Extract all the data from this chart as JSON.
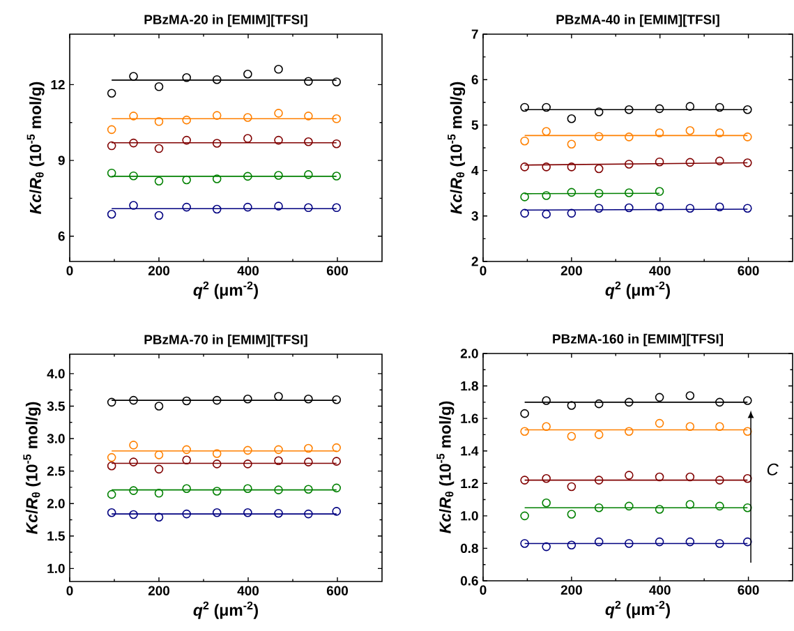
{
  "chart_data": [
    {
      "type": "scatter",
      "title": "PBzMA-20 in [EMIM][TFSI]",
      "xlabel": "*q*$^{2}$ (μm$^{-2}$)",
      "ylabel": "*Kc*/*R*$_{θ}$ (10$^{-5}$ mol/g)",
      "marker": "circle",
      "x": [
        94,
        143,
        200,
        262,
        330,
        399,
        468,
        535,
        598
      ],
      "xlim": [
        0,
        700
      ],
      "xticks": [
        0,
        200,
        400,
        600
      ],
      "ylim": [
        5,
        14
      ],
      "yticks": [
        6,
        9,
        12
      ],
      "series": [
        {
          "color": "#000000",
          "values": [
            11.66,
            12.33,
            11.92,
            12.28,
            12.2,
            12.42,
            12.61,
            12.13,
            12.11
          ]
        },
        {
          "color": "#ff8000",
          "values": [
            10.22,
            10.76,
            10.54,
            10.6,
            10.78,
            10.7,
            10.87,
            10.76,
            10.65
          ]
        },
        {
          "color": "#800000",
          "values": [
            9.58,
            9.69,
            9.47,
            9.8,
            9.68,
            9.87,
            9.8,
            9.74,
            9.66
          ]
        },
        {
          "color": "#008000",
          "values": [
            8.5,
            8.39,
            8.18,
            8.23,
            8.27,
            8.37,
            8.41,
            8.44,
            8.38
          ]
        },
        {
          "color": "#000080",
          "values": [
            6.87,
            7.22,
            6.82,
            7.15,
            7.07,
            7.15,
            7.19,
            7.13,
            7.13
          ]
        },
        {
          "type": "line",
          "marker": "none",
          "color": "#000000",
          "x": [
            94,
            598
          ],
          "values": [
            12.18,
            12.18
          ]
        },
        {
          "type": "line",
          "marker": "none",
          "color": "#ff8000",
          "x": [
            94,
            598
          ],
          "values": [
            10.65,
            10.65
          ]
        },
        {
          "type": "line",
          "marker": "none",
          "color": "#800000",
          "x": [
            94,
            598
          ],
          "values": [
            9.7,
            9.7
          ]
        },
        {
          "type": "line",
          "marker": "none",
          "color": "#008000",
          "x": [
            94,
            598
          ],
          "values": [
            8.37,
            8.37
          ]
        },
        {
          "type": "line",
          "marker": "none",
          "color": "#000080",
          "x": [
            94,
            598
          ],
          "values": [
            7.09,
            7.09
          ]
        }
      ]
    },
    {
      "type": "scatter",
      "title": "PBzMA-40 in [EMIM][TFSI]",
      "xlabel": "*q*$^{2}$ (μm$^{-2}$)",
      "ylabel": "*Kc*/*R*$_{θ}$ (10$^{-5}$ mol/g)",
      "marker": "circle",
      "x": [
        94,
        143,
        200,
        262,
        330,
        399,
        468,
        535,
        598
      ],
      "xlim": [
        0,
        700
      ],
      "xticks": [
        0,
        200,
        400,
        600
      ],
      "ylim": [
        2,
        7
      ],
      "yticks": [
        2,
        3,
        4,
        5,
        6,
        7
      ],
      "series": [
        {
          "color": "#000000",
          "values": [
            5.39,
            5.39,
            5.14,
            5.29,
            5.34,
            5.36,
            5.41,
            5.39,
            5.34
          ]
        },
        {
          "color": "#ff8000",
          "values": [
            4.65,
            4.86,
            4.58,
            4.75,
            4.74,
            4.83,
            4.88,
            4.83,
            4.74
          ]
        },
        {
          "color": "#800000",
          "values": [
            4.08,
            4.08,
            4.08,
            4.04,
            4.14,
            4.19,
            4.18,
            4.21,
            4.17
          ]
        },
        {
          "color": "#008000",
          "x": [
            94,
            143,
            200,
            262,
            330,
            399
          ],
          "values": [
            3.42,
            3.45,
            3.52,
            3.5,
            3.51,
            3.54
          ]
        },
        {
          "color": "#000080",
          "values": [
            3.06,
            3.04,
            3.06,
            3.17,
            3.18,
            3.2,
            3.17,
            3.2,
            3.17
          ]
        },
        {
          "type": "line",
          "marker": "none",
          "color": "#000000",
          "x": [
            94,
            598
          ],
          "values": [
            5.34,
            5.34
          ]
        },
        {
          "type": "line",
          "marker": "none",
          "color": "#ff8000",
          "x": [
            94,
            598
          ],
          "values": [
            4.77,
            4.77
          ]
        },
        {
          "type": "line",
          "marker": "none",
          "color": "#800000",
          "x": [
            94,
            598
          ],
          "values": [
            4.12,
            4.17
          ]
        },
        {
          "type": "line",
          "marker": "none",
          "color": "#008000",
          "x": [
            94,
            399
          ],
          "values": [
            3.49,
            3.5
          ]
        },
        {
          "type": "line",
          "marker": "none",
          "color": "#000080",
          "x": [
            94,
            598
          ],
          "values": [
            3.13,
            3.15
          ]
        }
      ]
    },
    {
      "type": "scatter",
      "title": "PBzMA-70 in [EMIM][TFSI]",
      "xlabel": "*q*$^{2}$ (μm$^{-2}$)",
      "ylabel": "*Kc*/*R*$_{θ}$ (10$^{-5}$ mol/g)",
      "marker": "circle",
      "x": [
        94,
        143,
        200,
        262,
        330,
        399,
        468,
        535,
        598
      ],
      "xlim": [
        0,
        700
      ],
      "xticks": [
        0,
        200,
        400,
        600
      ],
      "ylim": [
        0.8,
        4.3
      ],
      "yticks": [
        {
          "value": 1,
          "label": "1.0"
        },
        {
          "value": 1.5,
          "label": "1.5"
        },
        {
          "value": 2,
          "label": "2.0"
        },
        {
          "value": 2.5,
          "label": "2.5"
        },
        {
          "value": 3,
          "label": "3.0"
        },
        {
          "value": 3.5,
          "label": "3.5"
        },
        {
          "value": 4,
          "label": "4.0"
        }
      ],
      "series": [
        {
          "color": "#000000",
          "values": [
            3.56,
            3.59,
            3.5,
            3.58,
            3.59,
            3.61,
            3.65,
            3.61,
            3.6
          ]
        },
        {
          "color": "#ff8000",
          "values": [
            2.71,
            2.9,
            2.75,
            2.83,
            2.77,
            2.82,
            2.83,
            2.85,
            2.86
          ]
        },
        {
          "color": "#800000",
          "values": [
            2.58,
            2.64,
            2.53,
            2.67,
            2.61,
            2.61,
            2.66,
            2.64,
            2.65
          ]
        },
        {
          "color": "#008000",
          "values": [
            2.14,
            2.2,
            2.16,
            2.23,
            2.19,
            2.23,
            2.21,
            2.22,
            2.24
          ]
        },
        {
          "color": "#000080",
          "values": [
            1.86,
            1.83,
            1.79,
            1.84,
            1.86,
            1.86,
            1.85,
            1.84,
            1.88
          ]
        },
        {
          "type": "line",
          "marker": "none",
          "color": "#000000",
          "x": [
            94,
            598
          ],
          "values": [
            3.59,
            3.59
          ]
        },
        {
          "type": "line",
          "marker": "none",
          "color": "#ff8000",
          "x": [
            94,
            598
          ],
          "values": [
            2.81,
            2.81
          ]
        },
        {
          "type": "line",
          "marker": "none",
          "color": "#800000",
          "x": [
            94,
            598
          ],
          "values": [
            2.62,
            2.62
          ]
        },
        {
          "type": "line",
          "marker": "none",
          "color": "#008000",
          "x": [
            94,
            598
          ],
          "values": [
            2.21,
            2.21
          ]
        },
        {
          "type": "line",
          "marker": "none",
          "color": "#000080",
          "x": [
            94,
            598
          ],
          "values": [
            1.84,
            1.84
          ]
        }
      ]
    },
    {
      "type": "scatter",
      "title": "PBzMA-160 in [EMIM][TFSI]",
      "xlabel": "*q*$^{2}$ (μm$^{-2}$)",
      "ylabel": "*Kc*/*R*$_{θ}$ (10$^{-5}$ mol/g)",
      "marker": "circle",
      "x": [
        94,
        143,
        200,
        262,
        330,
        399,
        468,
        535,
        598
      ],
      "xlim": [
        0,
        700
      ],
      "xticks": [
        0,
        200,
        400,
        600
      ],
      "ylim": [
        0.6,
        2.0
      ],
      "yticks": [
        0.6,
        0.8,
        {
          "value": 1,
          "label": "1.0"
        },
        1.2,
        1.4,
        1.6,
        1.8,
        {
          "value": 2,
          "label": "2.0"
        }
      ],
      "annotations": [
        "C"
      ],
      "series": [
        {
          "color": "#000000",
          "values": [
            1.63,
            1.71,
            1.68,
            1.69,
            1.7,
            1.73,
            1.74,
            1.7,
            1.71
          ]
        },
        {
          "color": "#ff8000",
          "values": [
            1.52,
            1.55,
            1.49,
            1.5,
            1.52,
            1.57,
            1.55,
            1.55,
            1.52
          ]
        },
        {
          "color": "#800000",
          "values": [
            1.22,
            1.23,
            1.18,
            1.22,
            1.25,
            1.24,
            1.24,
            1.22,
            1.23
          ]
        },
        {
          "color": "#008000",
          "values": [
            1.0,
            1.08,
            1.01,
            1.05,
            1.06,
            1.04,
            1.07,
            1.06,
            1.05
          ]
        },
        {
          "color": "#000080",
          "values": [
            0.83,
            0.81,
            0.82,
            0.84,
            0.83,
            0.84,
            0.84,
            0.83,
            0.84
          ]
        },
        {
          "type": "line",
          "marker": "none",
          "color": "#000000",
          "x": [
            94,
            598
          ],
          "values": [
            1.7,
            1.7
          ]
        },
        {
          "type": "line",
          "marker": "none",
          "color": "#ff8000",
          "x": [
            94,
            598
          ],
          "values": [
            1.53,
            1.53
          ]
        },
        {
          "type": "line",
          "marker": "none",
          "color": "#800000",
          "x": [
            94,
            598
          ],
          "values": [
            1.22,
            1.22
          ]
        },
        {
          "type": "line",
          "marker": "none",
          "color": "#008000",
          "x": [
            94,
            598
          ],
          "values": [
            1.05,
            1.05
          ]
        },
        {
          "type": "line",
          "marker": "none",
          "color": "#000080",
          "x": [
            94,
            598
          ],
          "values": [
            0.83,
            0.83
          ]
        }
      ]
    }
  ]
}
